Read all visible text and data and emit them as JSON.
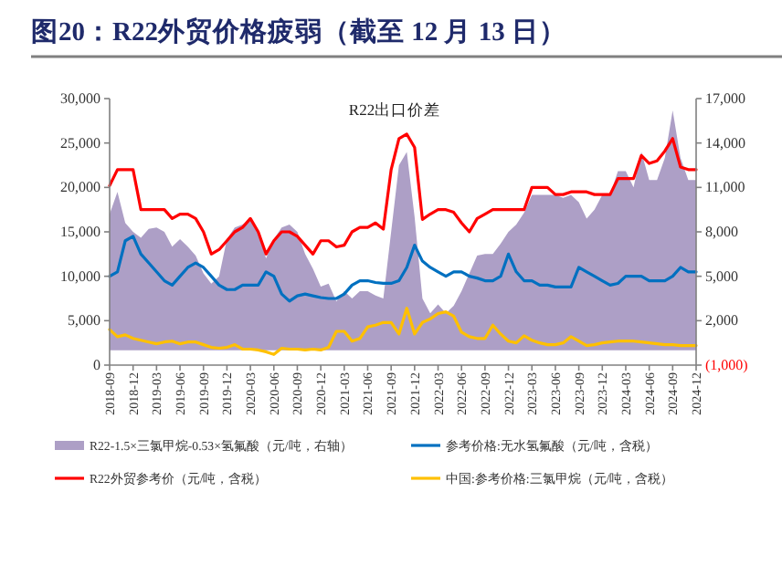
{
  "chart_data": {
    "type": "line",
    "title": "图20：R22外贸价格疲弱（截至 12 月 13 日）",
    "annotations": [
      "R22出口价差"
    ],
    "x": [
      "2018-09",
      "2018-10",
      "2018-11",
      "2018-12",
      "2019-01",
      "2019-02",
      "2019-03",
      "2019-04",
      "2019-05",
      "2019-06",
      "2019-07",
      "2019-08",
      "2019-09",
      "2019-10",
      "2019-11",
      "2019-12",
      "2020-01",
      "2020-02",
      "2020-03",
      "2020-04",
      "2020-05",
      "2020-06",
      "2020-07",
      "2020-08",
      "2020-09",
      "2020-10",
      "2020-11",
      "2020-12",
      "2021-01",
      "2021-02",
      "2021-03",
      "2021-04",
      "2021-05",
      "2021-06",
      "2021-07",
      "2021-08",
      "2021-09",
      "2021-10",
      "2021-11",
      "2021-12",
      "2022-01",
      "2022-02",
      "2022-03",
      "2022-04",
      "2022-05",
      "2022-06",
      "2022-07",
      "2022-08",
      "2022-09",
      "2022-10",
      "2022-11",
      "2022-12",
      "2023-01",
      "2023-02",
      "2023-03",
      "2023-04",
      "2023-05",
      "2023-06",
      "2023-07",
      "2023-08",
      "2023-09",
      "2023-10",
      "2023-11",
      "2023-12",
      "2024-01",
      "2024-02",
      "2024-03",
      "2024-04",
      "2024-05",
      "2024-06",
      "2024-07",
      "2024-08",
      "2024-09",
      "2024-10",
      "2024-11",
      "2024-12"
    ],
    "series": [
      {
        "name": "R22-1.5×三氯甲烷-0.53×氢氟酸（元/吨，右轴）",
        "type": "area",
        "axis": "y2",
        "color": "#ad9fc6",
        "values": [
          9200,
          10700,
          8600,
          8000,
          7600,
          8200,
          8300,
          8000,
          7000,
          7500,
          7000,
          6400,
          5200,
          4500,
          5000,
          7500,
          8300,
          8500,
          8800,
          8000,
          6200,
          7500,
          8300,
          8500,
          8000,
          6500,
          5500,
          4300,
          4500,
          3300,
          4000,
          3500,
          4000,
          4000,
          3700,
          3500,
          8000,
          12500,
          13400,
          9000,
          3500,
          2500,
          3100,
          2500,
          3000,
          4000,
          5200,
          6400,
          6500,
          6500,
          7200,
          8000,
          8500,
          9300,
          10500,
          10500,
          10500,
          10500,
          10300,
          10500,
          10000,
          8900,
          9500,
          10500,
          10500,
          12100,
          12100,
          11000,
          13400,
          11500,
          11500,
          13000,
          16200,
          13000,
          11500,
          11500
        ]
      },
      {
        "name": "参考价格:无水氢氟酸（元/吨，含税）",
        "color": "#0070c0",
        "values": [
          10000,
          10500,
          14000,
          14500,
          12500,
          11500,
          10500,
          9500,
          9000,
          10000,
          11000,
          11500,
          11000,
          10000,
          9000,
          8500,
          8500,
          9000,
          9000,
          9000,
          10500,
          10000,
          8000,
          7200,
          7800,
          8000,
          7800,
          7600,
          7500,
          7500,
          8000,
          9000,
          9500,
          9500,
          9300,
          9200,
          9200,
          9500,
          11000,
          13500,
          11700,
          11000,
          10500,
          10000,
          10500,
          10500,
          10000,
          9800,
          9500,
          9500,
          10000,
          12500,
          10500,
          9500,
          9500,
          9000,
          9000,
          8800,
          8800,
          8800,
          11000,
          10500,
          10000,
          9500,
          9000,
          9200,
          10000,
          10000,
          10000,
          9500,
          9500,
          9500,
          10000,
          11000,
          10500,
          10500
        ]
      },
      {
        "name": "R22外贸参考价（元/吨，含税）",
        "color": "#ff0000",
        "values": [
          20200,
          22000,
          22000,
          22000,
          17500,
          17500,
          17500,
          17500,
          16500,
          17000,
          17000,
          16500,
          15000,
          12500,
          13000,
          14000,
          15000,
          15500,
          16500,
          15000,
          12500,
          14000,
          15000,
          15000,
          14500,
          13500,
          12500,
          14000,
          14000,
          13300,
          13500,
          15000,
          15500,
          15500,
          16000,
          15300,
          22000,
          25500,
          26000,
          24500,
          16400,
          17000,
          17500,
          17500,
          17200,
          16000,
          15000,
          16500,
          17000,
          17500,
          17500,
          17500,
          17500,
          17500,
          20000,
          20000,
          20000,
          19200,
          19200,
          19500,
          19500,
          19500,
          19200,
          19200,
          19200,
          21000,
          21000,
          21000,
          23600,
          22700,
          23000,
          24100,
          25500,
          22300,
          22000,
          22000
        ]
      },
      {
        "name": "中国:参考价格:三氯甲烷（元/吨，含税）",
        "color": "#ffc000",
        "values": [
          4000,
          3200,
          3400,
          3000,
          2800,
          2600,
          2400,
          2600,
          2700,
          2400,
          2600,
          2600,
          2300,
          2000,
          1900,
          2000,
          2300,
          1800,
          1800,
          1700,
          1500,
          1200,
          1900,
          1800,
          1800,
          1700,
          1800,
          1700,
          2000,
          3800,
          3800,
          2700,
          3000,
          4300,
          4500,
          4800,
          4800,
          3500,
          6400,
          3500,
          4800,
          5200,
          5800,
          6000,
          5500,
          3700,
          3200,
          3000,
          3000,
          4500,
          3500,
          2700,
          2500,
          3300,
          2800,
          2500,
          2300,
          2300,
          2500,
          3200,
          2700,
          2200,
          2300,
          2500,
          2600,
          2700,
          2700,
          2700,
          2600,
          2500,
          2400,
          2300,
          2300,
          2200,
          2200,
          2200
        ]
      }
    ],
    "xlim": [
      "2018-09",
      "2024-12"
    ],
    "xticks": [
      "2018-09",
      "2018-12",
      "2019-03",
      "2019-06",
      "2019-09",
      "2019-12",
      "2020-03",
      "2020-06",
      "2020-09",
      "2020-12",
      "2021-03",
      "2021-06",
      "2021-09",
      "2021-12",
      "2022-03",
      "2022-06",
      "2022-09",
      "2022-12",
      "2023-03",
      "2023-06",
      "2023-09",
      "2023-12",
      "2024-03",
      "2024-06",
      "2024-09",
      "2024-12"
    ],
    "ylim": [
      0,
      30000
    ],
    "yticks": [
      0,
      {
        "value": 5000,
        "label": "5,000"
      },
      {
        "value": 10000,
        "label": "10,000"
      },
      {
        "value": 15000,
        "label": "15,000"
      },
      {
        "value": 20000,
        "label": "20,000"
      },
      {
        "value": 25000,
        "label": "25,000"
      },
      {
        "value": 30000,
        "label": "30,000"
      }
    ],
    "y2lim": [
      -1000,
      17000
    ],
    "y2ticks": [
      {
        "value": -1000,
        "label": "(1,000)"
      },
      {
        "value": 2000,
        "label": "2,000"
      },
      {
        "value": 5000,
        "label": "5,000"
      },
      {
        "value": 8000,
        "label": "8,000"
      },
      {
        "value": 11000,
        "label": "11,000"
      },
      {
        "value": 14000,
        "label": "14,000"
      },
      {
        "value": 17000,
        "label": "17,000"
      }
    ],
    "legend": "bottom",
    "grid": false,
    "marker": "none",
    "line_style": "solid"
  }
}
